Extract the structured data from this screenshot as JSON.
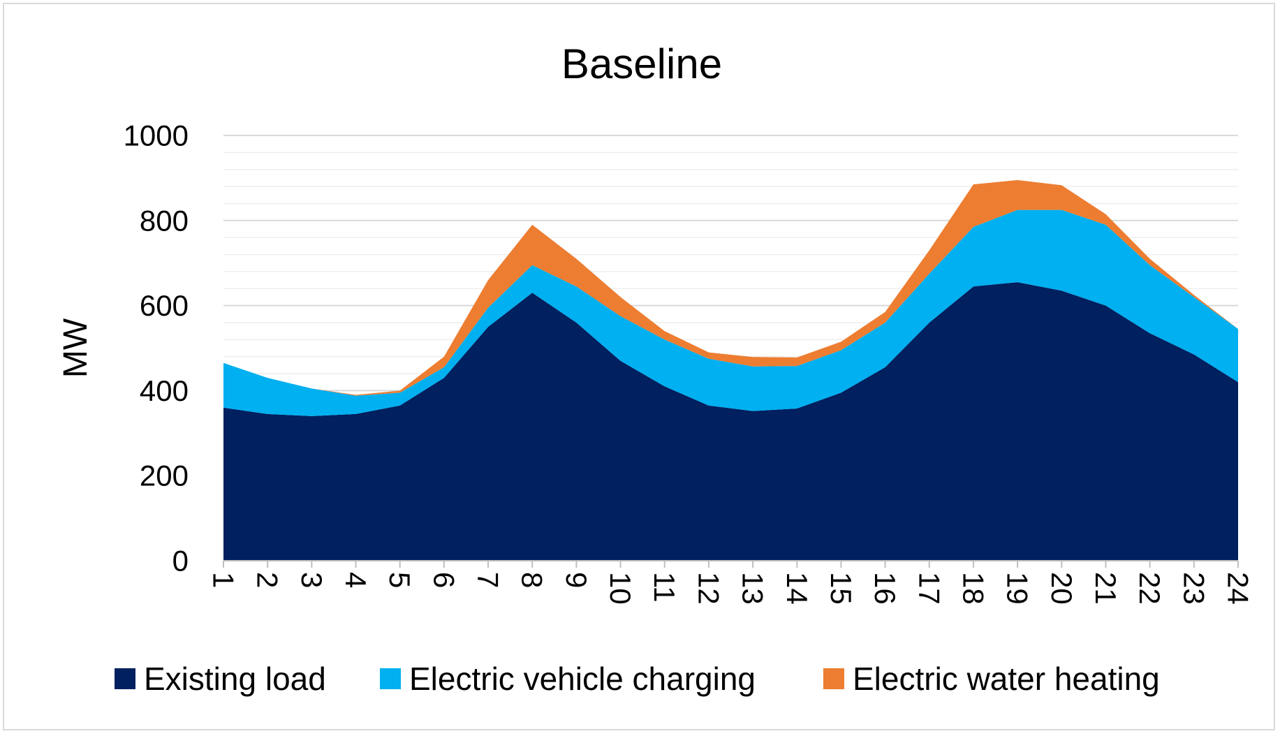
{
  "chart_data": {
    "type": "area",
    "stacked": true,
    "title": "Baseline",
    "xlabel": "",
    "ylabel": "MW",
    "x": [
      "1",
      "2",
      "3",
      "4",
      "5",
      "6",
      "7",
      "8",
      "9",
      "10",
      "11",
      "12",
      "13",
      "14",
      "15",
      "16",
      "17",
      "18",
      "19",
      "20",
      "21",
      "22",
      "23",
      "24"
    ],
    "ylim": [
      0,
      1000
    ],
    "yticks": [
      "0",
      "200",
      "400",
      "600",
      "800",
      "1000"
    ],
    "grid": true,
    "legend": "bottom",
    "series": [
      {
        "name": "Existing load",
        "color": "#002060",
        "values": [
          360,
          345,
          340,
          345,
          365,
          430,
          550,
          630,
          560,
          470,
          410,
          365,
          352,
          358,
          395,
          455,
          560,
          645,
          655,
          635,
          600,
          535,
          485,
          420
        ]
      },
      {
        "name": "Electric vehicle charging",
        "color": "#00b0f0",
        "values": [
          105,
          85,
          65,
          43,
          30,
          25,
          45,
          65,
          85,
          105,
          110,
          110,
          105,
          100,
          100,
          105,
          115,
          140,
          170,
          190,
          190,
          160,
          135,
          125
        ]
      },
      {
        "name": "Electric water heating",
        "color": "#ed7d31",
        "values": [
          0,
          0,
          0,
          2,
          5,
          25,
          65,
          95,
          65,
          45,
          20,
          15,
          22,
          20,
          20,
          25,
          55,
          100,
          70,
          58,
          25,
          15,
          5,
          0
        ]
      }
    ]
  }
}
